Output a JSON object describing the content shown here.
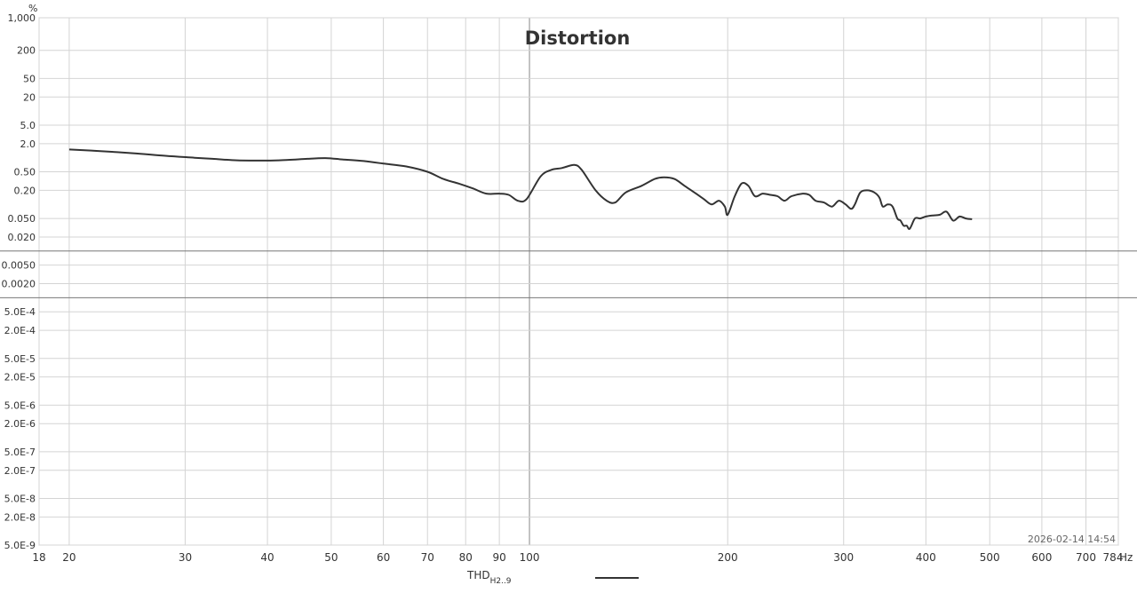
{
  "chart_data": {
    "type": "line",
    "title": "Distortion",
    "y_unit": "%",
    "x_unit": "Hz",
    "x_scale": "log",
    "y_scale": "log",
    "xlim": [
      18,
      784
    ],
    "ylim": [
      5e-09,
      1000
    ],
    "grid": true,
    "timestamp": "2026-02-14 14:54",
    "x_ticks": [
      {
        "v": 18,
        "label": "18"
      },
      {
        "v": 20,
        "label": "20"
      },
      {
        "v": 30,
        "label": "30"
      },
      {
        "v": 40,
        "label": "40"
      },
      {
        "v": 50,
        "label": "50"
      },
      {
        "v": 60,
        "label": "60"
      },
      {
        "v": 70,
        "label": "70"
      },
      {
        "v": 80,
        "label": "80"
      },
      {
        "v": 90,
        "label": "90"
      },
      {
        "v": 100,
        "label": "100"
      },
      {
        "v": 200,
        "label": "200"
      },
      {
        "v": 300,
        "label": "300"
      },
      {
        "v": 400,
        "label": "400"
      },
      {
        "v": 500,
        "label": "500"
      },
      {
        "v": 600,
        "label": "600"
      },
      {
        "v": 700,
        "label": "700"
      },
      {
        "v": 784,
        "label": "784"
      }
    ],
    "y_ticks": [
      {
        "v": 1000,
        "label": "1,000"
      },
      {
        "v": 200,
        "label": "200"
      },
      {
        "v": 50,
        "label": "50"
      },
      {
        "v": 20,
        "label": "20"
      },
      {
        "v": 5,
        "label": "5.0"
      },
      {
        "v": 2,
        "label": "2.0"
      },
      {
        "v": 0.5,
        "label": "0.50"
      },
      {
        "v": 0.2,
        "label": "0.20"
      },
      {
        "v": 0.05,
        "label": "0.050"
      },
      {
        "v": 0.02,
        "label": "0.020"
      },
      {
        "v": 0.005,
        "label": "0.0050"
      },
      {
        "v": 0.002,
        "label": "0.0020"
      },
      {
        "v": 0.0005,
        "label": "5.0E-4"
      },
      {
        "v": 0.0002,
        "label": "2.0E-4"
      },
      {
        "v": 5e-05,
        "label": "5.0E-5"
      },
      {
        "v": 2e-05,
        "label": "2.0E-5"
      },
      {
        "v": 5e-06,
        "label": "5.0E-6"
      },
      {
        "v": 2e-06,
        "label": "2.0E-6"
      },
      {
        "v": 5e-07,
        "label": "5.0E-7"
      },
      {
        "v": 2e-07,
        "label": "2.0E-7"
      },
      {
        "v": 5e-08,
        "label": "5.0E-8"
      },
      {
        "v": 2e-08,
        "label": "2.0E-8"
      },
      {
        "v": 5e-09,
        "label": "5.0E-9"
      }
    ],
    "series": [
      {
        "name": "THD",
        "name_sub": "H2..9",
        "color": "#333333",
        "points": [
          [
            20,
            1.5
          ],
          [
            22,
            1.4
          ],
          [
            25,
            1.25
          ],
          [
            28,
            1.1
          ],
          [
            31,
            1.0
          ],
          [
            33,
            0.95
          ],
          [
            36,
            0.88
          ],
          [
            40,
            0.87
          ],
          [
            43,
            0.9
          ],
          [
            46,
            0.95
          ],
          [
            49,
            0.98
          ],
          [
            52,
            0.92
          ],
          [
            56,
            0.85
          ],
          [
            60,
            0.75
          ],
          [
            65,
            0.65
          ],
          [
            70,
            0.5
          ],
          [
            74,
            0.35
          ],
          [
            78,
            0.28
          ],
          [
            82,
            0.22
          ],
          [
            86,
            0.17
          ],
          [
            90,
            0.17
          ],
          [
            93,
            0.16
          ],
          [
            96,
            0.12
          ],
          [
            99,
            0.13
          ],
          [
            104,
            0.4
          ],
          [
            108,
            0.55
          ],
          [
            112,
            0.6
          ],
          [
            117,
            0.7
          ],
          [
            120,
            0.55
          ],
          [
            126,
            0.2
          ],
          [
            131,
            0.12
          ],
          [
            135,
            0.11
          ],
          [
            140,
            0.18
          ],
          [
            148,
            0.25
          ],
          [
            155,
            0.35
          ],
          [
            160,
            0.38
          ],
          [
            166,
            0.35
          ],
          [
            172,
            0.25
          ],
          [
            178,
            0.18
          ],
          [
            184,
            0.13
          ],
          [
            189,
            0.1
          ],
          [
            194,
            0.12
          ],
          [
            198,
            0.09
          ],
          [
            200,
            0.06
          ],
          [
            205,
            0.15
          ],
          [
            210,
            0.28
          ],
          [
            215,
            0.25
          ],
          [
            220,
            0.15
          ],
          [
            226,
            0.17
          ],
          [
            232,
            0.16
          ],
          [
            238,
            0.15
          ],
          [
            244,
            0.12
          ],
          [
            250,
            0.15
          ],
          [
            260,
            0.17
          ],
          [
            266,
            0.16
          ],
          [
            272,
            0.12
          ],
          [
            280,
            0.11
          ],
          [
            288,
            0.09
          ],
          [
            295,
            0.12
          ],
          [
            302,
            0.1
          ],
          [
            308,
            0.08
          ],
          [
            312,
            0.1
          ],
          [
            318,
            0.18
          ],
          [
            326,
            0.2
          ],
          [
            334,
            0.18
          ],
          [
            340,
            0.14
          ],
          [
            344,
            0.09
          ],
          [
            350,
            0.1
          ],
          [
            356,
            0.09
          ],
          [
            362,
            0.05
          ],
          [
            366,
            0.045
          ],
          [
            370,
            0.035
          ],
          [
            374,
            0.035
          ],
          [
            378,
            0.03
          ],
          [
            385,
            0.05
          ],
          [
            392,
            0.05
          ],
          [
            400,
            0.055
          ],
          [
            410,
            0.058
          ],
          [
            420,
            0.06
          ],
          [
            430,
            0.07
          ],
          [
            440,
            0.045
          ],
          [
            450,
            0.055
          ],
          [
            460,
            0.05
          ],
          [
            470,
            0.048
          ]
        ]
      }
    ]
  }
}
